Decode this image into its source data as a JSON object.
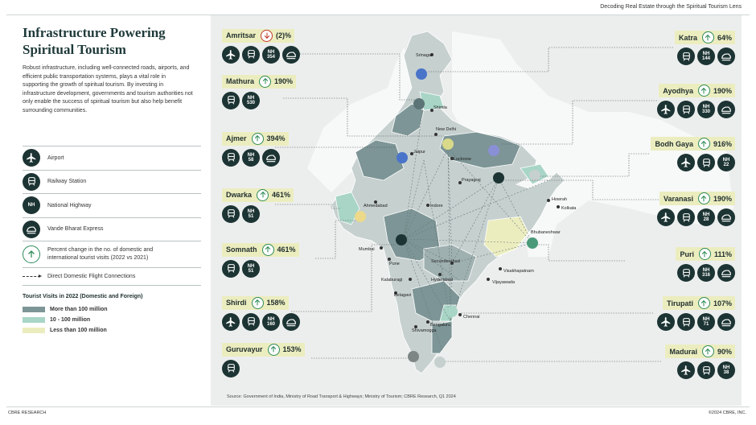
{
  "header": {
    "text": "Decoding Real Estate through the Spiritual Tourism Lens"
  },
  "title": "Infrastructure Powering Spiritual Tourism",
  "description": "Robust infrastructure, including well-connected roads, airports, and efficient public transportation systems, plays a vital role in supporting the growth of spiritual tourism. By investing in infrastructure development, governments and tourism authorities not only enable the success of spiritual tourism but also help benefit surrounding communities.",
  "legend": {
    "airport": "Airport",
    "railway": "Railway Station",
    "highway": "National Highway",
    "highway_icon": "NH",
    "vande": "Vande Bharat Express",
    "pct": "Percent change in the no. of domestic and international  tourist visits (2022 vs 2021)",
    "flight": "Direct Domestic Flight Connections",
    "visits_title": "Tourist Visits in 2022 (Domestic and Foreign)",
    "tiers": [
      {
        "label": "More than 100 million",
        "color": "#7d9596"
      },
      {
        "label": "10 - 100 million",
        "color": "#a8d5c6"
      },
      {
        "label": "Less than 100 million",
        "color": "#ecedbf"
      }
    ]
  },
  "cities_left": [
    {
      "name": "Amritsar",
      "pct": "(2)%",
      "dir": "down",
      "icons": [
        "airport",
        "railway",
        "NH 354",
        "vande"
      ]
    },
    {
      "name": "Mathura",
      "pct": "190%",
      "dir": "up",
      "icons": [
        "railway",
        "NH 530"
      ]
    },
    {
      "name": "Ajmer",
      "pct": "394%",
      "dir": "up",
      "icons": [
        "railway",
        "NH 58",
        "vande"
      ]
    },
    {
      "name": "Dwarka",
      "pct": "461%",
      "dir": "up",
      "icons": [
        "railway",
        "NH 51"
      ]
    },
    {
      "name": "Somnath",
      "pct": "461%",
      "dir": "up",
      "icons": [
        "railway",
        "NH 51"
      ]
    },
    {
      "name": "Shirdi",
      "pct": "158%",
      "dir": "up",
      "icons": [
        "airport",
        "railway",
        "NH 160",
        "vande"
      ]
    },
    {
      "name": "Guruvayur",
      "pct": "153%",
      "dir": "up",
      "icons": [
        "railway"
      ]
    }
  ],
  "cities_right": [
    {
      "name": "Katra",
      "pct": "64%",
      "dir": "up",
      "icons": [
        "railway",
        "NH 144",
        "vande"
      ]
    },
    {
      "name": "Ayodhya",
      "pct": "190%",
      "dir": "up",
      "icons": [
        "airport",
        "railway",
        "NH 330",
        "vande"
      ]
    },
    {
      "name": "Bodh Gaya",
      "pct": "916%",
      "dir": "up",
      "icons": [
        "airport",
        "railway",
        "NH 22"
      ]
    },
    {
      "name": "Varanasi",
      "pct": "190%",
      "dir": "up",
      "icons": [
        "airport",
        "railway",
        "NH 28",
        "vande"
      ]
    },
    {
      "name": "Puri",
      "pct": "111%",
      "dir": "up",
      "icons": [
        "railway",
        "NH 316",
        "vande"
      ]
    },
    {
      "name": "Tirupati",
      "pct": "107%",
      "dir": "up",
      "icons": [
        "airport",
        "railway",
        "NH 71",
        "vande"
      ]
    },
    {
      "name": "Madurai",
      "pct": "90%",
      "dir": "up",
      "icons": [
        "airport",
        "railway",
        "NH 38"
      ]
    }
  ],
  "map_labels": [
    "Srinagar",
    "Shimla",
    "New Delhi",
    "Jaipur",
    "Lucknow",
    "Prayagraj",
    "Ahmedabad",
    "Indore",
    "Howrah",
    "Kolkata",
    "Bhubaneshwar",
    "Mumbai",
    "Pune",
    "Secunderabad",
    "Hyderabad",
    "Visakhapatnam",
    "Vijayawada",
    "Kalaburagi",
    "Belagavi",
    "Chennai",
    "Bengaluru",
    "Shivamogga"
  ],
  "source": "Source: Government of India,  Ministry of Road Transport & Highways; Ministry of Tourism; CBRE Research, Q1 2024",
  "footer": {
    "left": "CBRE RESEARCH",
    "right": "©2024 CBRE, INC."
  }
}
